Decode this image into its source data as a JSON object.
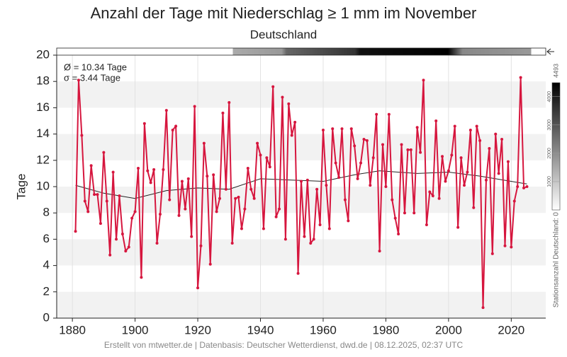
{
  "chart_data": {
    "type": "line",
    "title": "Anzahl der Tage mit Niederschlag ≥ 1 mm im November",
    "subtitle": "Deutschland",
    "y_label": "Tage",
    "annotations": [
      "Ø = 10.34 Tage",
      "σ = 3.44 Tage"
    ],
    "footer": "Erstellt von mtwetter.de | Datenbasis: Deutscher Wetterdienst, dwd.de | 08.12.2025, 02:37 UTC",
    "xlim": [
      1875,
      2031
    ],
    "ylim": [
      0,
      20
    ],
    "xticks": [
      1880,
      1900,
      1920,
      1940,
      1960,
      1980,
      2000,
      2020
    ],
    "yticks": [
      0,
      2,
      4,
      6,
      8,
      10,
      12,
      14,
      16,
      18,
      20
    ],
    "grid": true,
    "x": [
      1881,
      1882,
      1883,
      1884,
      1885,
      1886,
      1887,
      1888,
      1889,
      1890,
      1891,
      1892,
      1893,
      1894,
      1895,
      1896,
      1897,
      1898,
      1899,
      1900,
      1901,
      1902,
      1903,
      1904,
      1905,
      1906,
      1907,
      1908,
      1909,
      1910,
      1911,
      1912,
      1913,
      1914,
      1915,
      1916,
      1917,
      1918,
      1919,
      1920,
      1921,
      1922,
      1923,
      1924,
      1925,
      1926,
      1927,
      1928,
      1929,
      1930,
      1931,
      1932,
      1933,
      1934,
      1935,
      1936,
      1937,
      1938,
      1939,
      1940,
      1941,
      1942,
      1943,
      1944,
      1945,
      1946,
      1947,
      1948,
      1949,
      1950,
      1951,
      1952,
      1953,
      1954,
      1955,
      1956,
      1957,
      1958,
      1959,
      1960,
      1961,
      1962,
      1963,
      1964,
      1965,
      1966,
      1967,
      1968,
      1969,
      1970,
      1971,
      1972,
      1973,
      1974,
      1975,
      1976,
      1977,
      1978,
      1979,
      1980,
      1981,
      1982,
      1983,
      1984,
      1985,
      1986,
      1987,
      1988,
      1989,
      1990,
      1991,
      1992,
      1993,
      1994,
      1995,
      1996,
      1997,
      1998,
      1999,
      2000,
      2001,
      2002,
      2003,
      2004,
      2005,
      2006,
      2007,
      2008,
      2009,
      2010,
      2011,
      2012,
      2013,
      2014,
      2015,
      2016,
      2017,
      2018,
      2019,
      2020,
      2021,
      2022,
      2023,
      2024,
      2025
    ],
    "series": [
      {
        "color": "#d6163e",
        "values": [
          6.6,
          18.1,
          13.9,
          8.9,
          8.1,
          11.6,
          9.4,
          9.4,
          7.2,
          12.6,
          8.9,
          4.8,
          11.1,
          6.0,
          9.3,
          6.4,
          5.1,
          5.4,
          7.6,
          8.1,
          11.4,
          3.1,
          14.8,
          11.2,
          10.3,
          11.3,
          5.7,
          7.9,
          11.3,
          15.8,
          9.0,
          14.3,
          14.6,
          7.8,
          10.4,
          8.3,
          10.6,
          6.2,
          16.1,
          2.3,
          5.5,
          13.3,
          10.8,
          4.1,
          10.9,
          8.1,
          9.1,
          15.6,
          9.8,
          16.4,
          5.7,
          9.1,
          9.2,
          6.8,
          8.3,
          11.4,
          9.8,
          9.1,
          13.3,
          12.4,
          6.8,
          12.2,
          11.5,
          17.6,
          7.7,
          8.3,
          16.8,
          6.0,
          16.3,
          13.9,
          14.9,
          3.4,
          10.4,
          6.2,
          10.5,
          5.7,
          6.0,
          9.8,
          7.1,
          14.3,
          10.1,
          6.8,
          14.4,
          11.8,
          10.7,
          14.4,
          9.0,
          7.4,
          14.4,
          13.1,
          10.6,
          11.8,
          13.6,
          13.5,
          10.1,
          12.2,
          15.5,
          5.1,
          13.2,
          10.0,
          15.5,
          9.0,
          7.6,
          6.4,
          13.2,
          8.0,
          12.8,
          12.8,
          8.0,
          14.5,
          12.6,
          18.1,
          7.1,
          9.6,
          9.3,
          15.0,
          9.1,
          12.3,
          10.4,
          11.2,
          12.4,
          14.6,
          6.9,
          12.2,
          10.1,
          11.1,
          14.3,
          8.4,
          14.6,
          13.5,
          0.8,
          10.5,
          12.9,
          4.9,
          14.0,
          11.0,
          13.6,
          5.5,
          11.9,
          5.4,
          8.9,
          10.0,
          18.3,
          9.9,
          10.0
        ]
      }
    ],
    "trend": {
      "color": "#222222",
      "x": [
        1881,
        1890,
        1900,
        1910,
        1920,
        1930,
        1940,
        1950,
        1960,
        1970,
        1978,
        1990,
        2000,
        2010,
        2025
      ],
      "values": [
        10.1,
        9.5,
        9.1,
        9.7,
        9.9,
        9.8,
        10.6,
        10.5,
        10.4,
        10.9,
        11.2,
        11.0,
        11.1,
        10.8,
        10.2
      ]
    },
    "station_colorbar": {
      "label": "Stationsanzahl Deutschland: 0",
      "ticks": [
        1000,
        2000,
        3000,
        4000
      ],
      "max": 4493
    }
  }
}
